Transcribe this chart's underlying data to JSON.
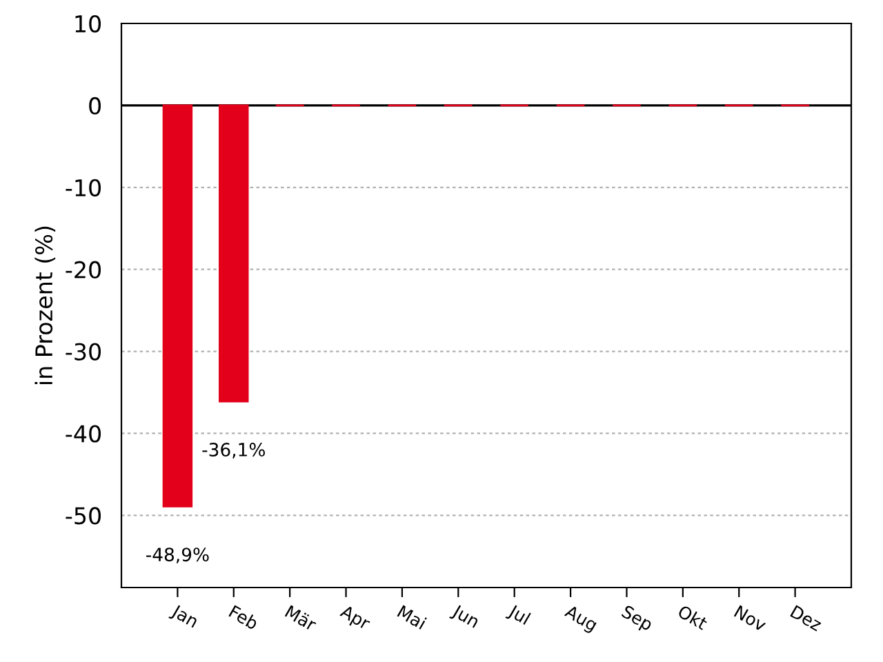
{
  "chart_data": {
    "type": "bar",
    "ylabel": "in Prozent (%)",
    "categories": [
      "Jan",
      "Feb",
      "Mär",
      "Apr",
      "Mai",
      "Jun",
      "Jul",
      "Aug",
      "Sep",
      "Okt",
      "Nov",
      "Dez"
    ],
    "values": [
      -48.9,
      -36.1,
      0,
      0,
      0,
      0,
      0,
      0,
      0,
      0,
      0,
      0
    ],
    "value_labels": [
      "-48,9%",
      "-36,1%",
      null,
      null,
      null,
      null,
      null,
      null,
      null,
      null,
      null,
      null
    ],
    "color": "#e2001a",
    "ylim": [
      -58.8,
      10
    ],
    "yticks": [
      10,
      0,
      -10,
      -20,
      -30,
      -40,
      -50
    ],
    "grid": "y",
    "ref_lines": [
      {
        "axis": "y",
        "value": 0,
        "color": "#000000",
        "line_style": "solid"
      }
    ]
  }
}
